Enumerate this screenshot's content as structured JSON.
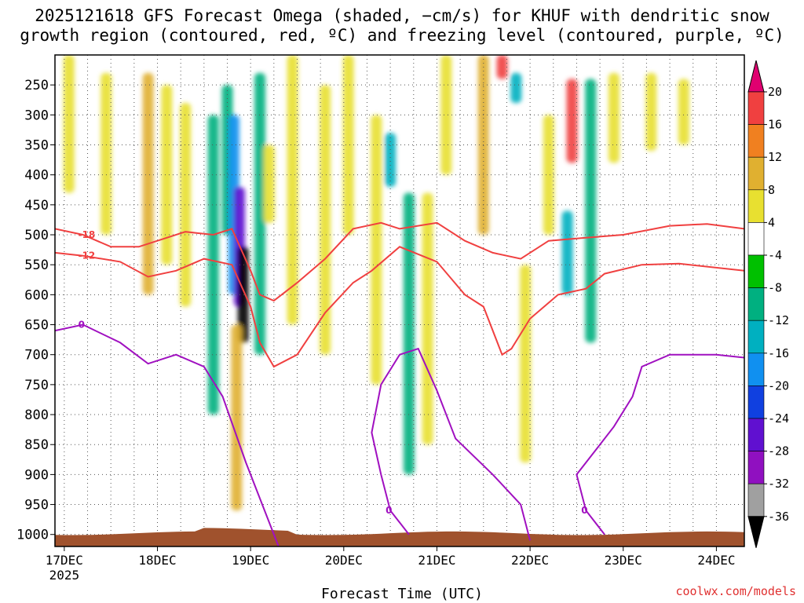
{
  "chart_data": {
    "type": "time-height cross-section",
    "title_line1": "2025121618 GFS Forecast Omega (shaded, −cm/s) for KHUF with dendritic snow",
    "title_line2": "growth region (contoured, red, ºC) and freezing level (contoured, purple, ºC)",
    "xlabel": "Forecast Time (UTC)",
    "x_ticks": [
      "17DEC",
      "18DEC",
      "19DEC",
      "20DEC",
      "21DEC",
      "22DEC",
      "23DEC",
      "24DEC"
    ],
    "x_tick_year": "2025",
    "y_ticks": [
      250,
      300,
      350,
      400,
      450,
      500,
      550,
      600,
      650,
      700,
      750,
      800,
      850,
      900,
      950,
      1000
    ],
    "y_range_hpa": [
      200,
      1020
    ],
    "x_range_days": [
      16.9,
      24.3
    ],
    "colorbar_ticks": [
      20,
      16,
      12,
      8,
      4,
      -4,
      -8,
      -12,
      -16,
      -20,
      -24,
      -28,
      -32,
      -36
    ],
    "colorbar_colors": [
      "#e00070",
      "#f04040",
      "#f08020",
      "#e0b030",
      "#e8e030",
      "#ffffff",
      "#00c000",
      "#00b080",
      "#00b0c0",
      "#1090f0",
      "#1040e0",
      "#6010d0",
      "#9010c0",
      "#a0a0a0",
      "#000000"
    ],
    "omega_blobs": [
      {
        "day": 17.05,
        "p0": 200,
        "p1": 430,
        "val": 5
      },
      {
        "day": 17.45,
        "p0": 230,
        "p1": 500,
        "val": 6
      },
      {
        "day": 17.9,
        "p0": 230,
        "p1": 600,
        "val": 9
      },
      {
        "day": 18.1,
        "p0": 250,
        "p1": 550,
        "val": 7
      },
      {
        "day": 18.3,
        "p0": 280,
        "p1": 620,
        "val": 6
      },
      {
        "day": 18.6,
        "p0": 300,
        "p1": 800,
        "val": -9
      },
      {
        "day": 18.75,
        "p0": 250,
        "p1": 500,
        "val": -10
      },
      {
        "day": 18.82,
        "p0": 300,
        "p1": 600,
        "val": -18
      },
      {
        "day": 18.88,
        "p0": 420,
        "p1": 620,
        "val": -26
      },
      {
        "day": 18.92,
        "p0": 520,
        "p1": 680,
        "val": -36
      },
      {
        "day": 18.85,
        "p0": 650,
        "p1": 960,
        "val": 9
      },
      {
        "day": 19.1,
        "p0": 230,
        "p1": 700,
        "val": -9
      },
      {
        "day": 19.2,
        "p0": 350,
        "p1": 480,
        "val": 6
      },
      {
        "day": 19.45,
        "p0": 200,
        "p1": 650,
        "val": 6
      },
      {
        "day": 19.8,
        "p0": 250,
        "p1": 700,
        "val": 6
      },
      {
        "day": 20.05,
        "p0": 200,
        "p1": 500,
        "val": 7
      },
      {
        "day": 20.35,
        "p0": 300,
        "p1": 750,
        "val": 6
      },
      {
        "day": 20.5,
        "p0": 330,
        "p1": 420,
        "val": -14
      },
      {
        "day": 20.7,
        "p0": 430,
        "p1": 900,
        "val": -10
      },
      {
        "day": 20.9,
        "p0": 430,
        "p1": 850,
        "val": 6
      },
      {
        "day": 21.1,
        "p0": 200,
        "p1": 400,
        "val": 6
      },
      {
        "day": 21.5,
        "p0": 200,
        "p1": 500,
        "val": 9
      },
      {
        "day": 21.7,
        "p0": 200,
        "p1": 240,
        "val": 18
      },
      {
        "day": 21.85,
        "p0": 230,
        "p1": 280,
        "val": -14
      },
      {
        "day": 21.95,
        "p0": 550,
        "p1": 880,
        "val": 5
      },
      {
        "day": 22.2,
        "p0": 300,
        "p1": 500,
        "val": 5
      },
      {
        "day": 22.45,
        "p0": 240,
        "p1": 380,
        "val": 17
      },
      {
        "day": 22.4,
        "p0": 460,
        "p1": 600,
        "val": -15
      },
      {
        "day": 22.65,
        "p0": 240,
        "p1": 680,
        "val": -8
      },
      {
        "day": 22.9,
        "p0": 230,
        "p1": 380,
        "val": 5
      },
      {
        "day": 23.3,
        "p0": 230,
        "p1": 360,
        "val": 5
      },
      {
        "day": 23.65,
        "p0": 240,
        "p1": 350,
        "val": 6
      }
    ],
    "contours": [
      {
        "label": "-18",
        "color": "#f04040",
        "points": [
          [
            16.9,
            490
          ],
          [
            17.2,
            500
          ],
          [
            17.5,
            520
          ],
          [
            17.8,
            520
          ],
          [
            18.1,
            505
          ],
          [
            18.3,
            495
          ],
          [
            18.6,
            500
          ],
          [
            18.8,
            490
          ],
          [
            19.0,
            560
          ],
          [
            19.1,
            600
          ],
          [
            19.25,
            610
          ],
          [
            19.5,
            580
          ],
          [
            19.8,
            540
          ],
          [
            20.1,
            490
          ],
          [
            20.4,
            480
          ],
          [
            20.6,
            490
          ],
          [
            21.0,
            480
          ],
          [
            21.3,
            510
          ],
          [
            21.6,
            530
          ],
          [
            21.9,
            540
          ],
          [
            22.2,
            510
          ],
          [
            22.6,
            505
          ],
          [
            23.0,
            500
          ],
          [
            23.5,
            485
          ],
          [
            23.9,
            482
          ],
          [
            24.3,
            490
          ]
        ]
      },
      {
        "label": "-12",
        "color": "#f04040",
        "points": [
          [
            16.9,
            530
          ],
          [
            17.2,
            535
          ],
          [
            17.6,
            545
          ],
          [
            17.9,
            570
          ],
          [
            18.2,
            560
          ],
          [
            18.5,
            540
          ],
          [
            18.8,
            550
          ],
          [
            19.0,
            620
          ],
          [
            19.1,
            680
          ],
          [
            19.25,
            720
          ],
          [
            19.5,
            700
          ],
          [
            19.8,
            630
          ],
          [
            20.1,
            580
          ],
          [
            20.3,
            560
          ],
          [
            20.6,
            520
          ],
          [
            21.0,
            545
          ],
          [
            21.3,
            600
          ],
          [
            21.5,
            620
          ],
          [
            21.7,
            700
          ],
          [
            21.8,
            690
          ],
          [
            22.0,
            640
          ],
          [
            22.3,
            600
          ],
          [
            22.6,
            590
          ],
          [
            22.8,
            565
          ],
          [
            23.2,
            550
          ],
          [
            23.6,
            548
          ],
          [
            24.3,
            560
          ]
        ]
      },
      {
        "label": "0",
        "color": "#a010c0",
        "points": [
          [
            16.9,
            660
          ],
          [
            17.2,
            650
          ],
          [
            17.6,
            680
          ],
          [
            17.9,
            715
          ],
          [
            18.2,
            700
          ],
          [
            18.5,
            720
          ],
          [
            18.7,
            770
          ],
          [
            18.95,
            880
          ],
          [
            19.3,
            1020
          ]
        ]
      },
      {
        "label": "0",
        "color": "#a010c0",
        "points": [
          [
            20.7,
            1000
          ],
          [
            20.5,
            960
          ],
          [
            20.4,
            900
          ],
          [
            20.3,
            830
          ],
          [
            20.4,
            750
          ],
          [
            20.6,
            700
          ],
          [
            20.8,
            690
          ],
          [
            21.0,
            760
          ],
          [
            21.2,
            840
          ],
          [
            21.6,
            900
          ],
          [
            21.9,
            950
          ],
          [
            22.0,
            1010
          ]
        ]
      },
      {
        "label": "0",
        "color": "#a010c0",
        "points": [
          [
            22.8,
            1000
          ],
          [
            22.6,
            960
          ],
          [
            22.5,
            900
          ],
          [
            22.7,
            860
          ],
          [
            22.9,
            820
          ],
          [
            23.1,
            770
          ],
          [
            23.2,
            720
          ],
          [
            23.5,
            700
          ],
          [
            24.0,
            700
          ],
          [
            24.3,
            705
          ]
        ]
      }
    ]
  }
}
